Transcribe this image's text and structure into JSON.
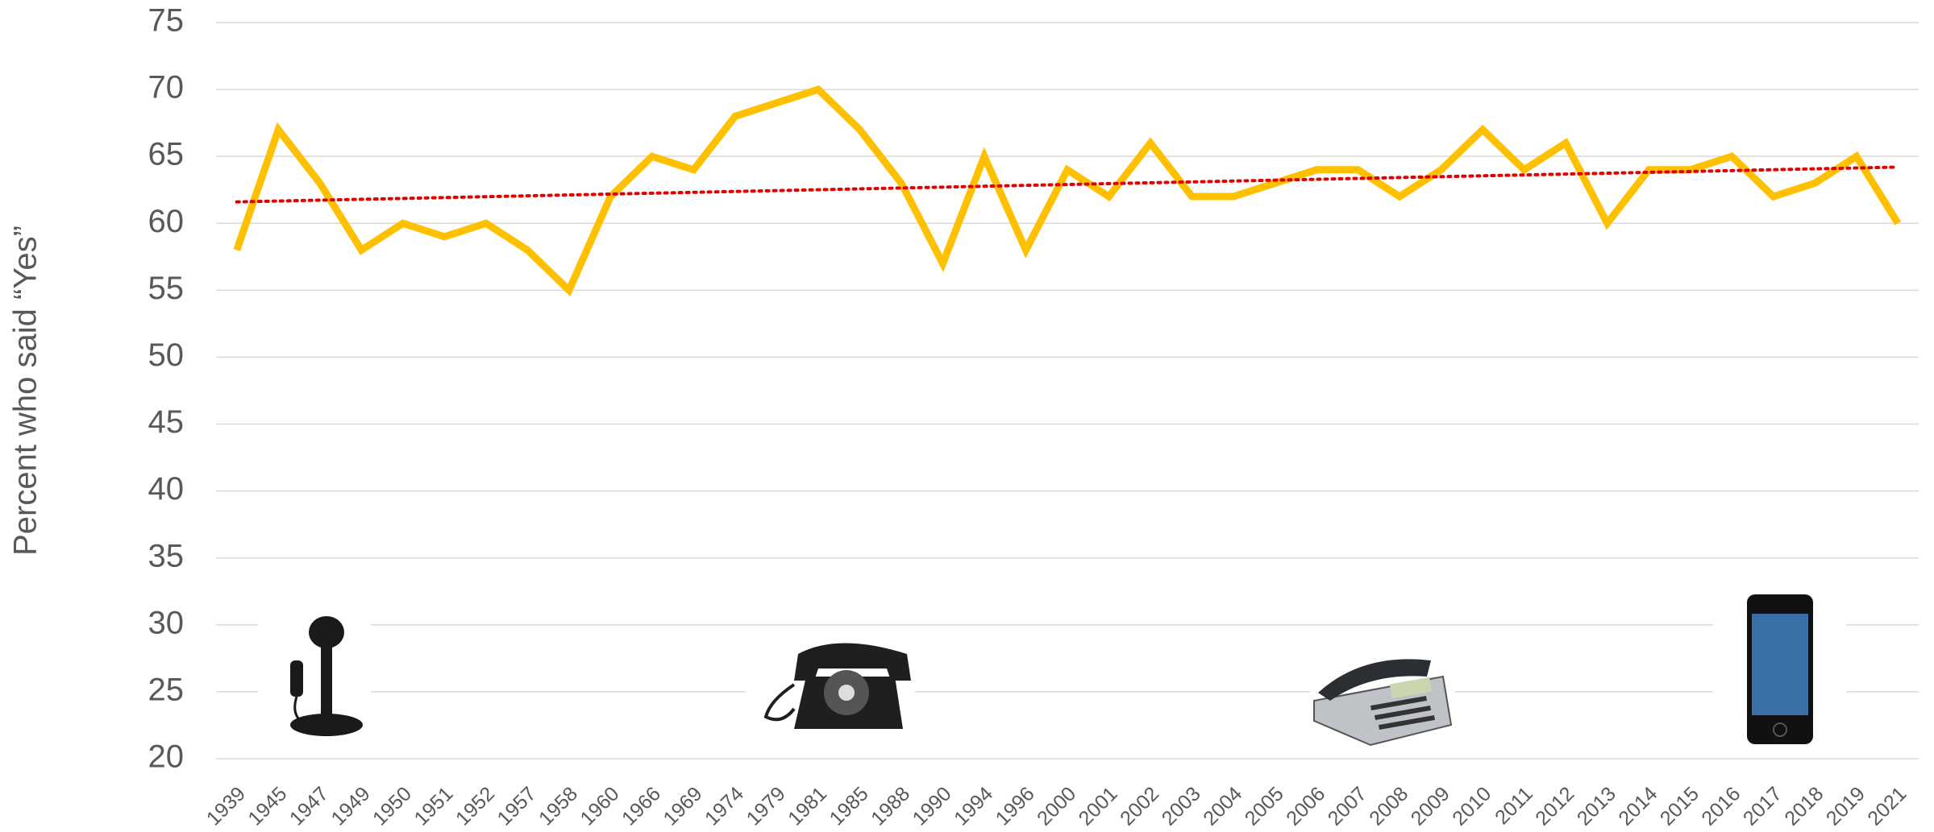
{
  "chart_data": {
    "type": "line",
    "y_axis_label": "Percent who said “Yes”",
    "categories": [
      "1939",
      "1945",
      "1947",
      "1949",
      "1950",
      "1951",
      "1952",
      "1957",
      "1958",
      "1960",
      "1966",
      "1969",
      "1974",
      "1979",
      "1981",
      "1985",
      "1988",
      "1990",
      "1994",
      "1996",
      "2000",
      "2001",
      "2002",
      "2003",
      "2004",
      "2005",
      "2006",
      "2007",
      "2008",
      "2009",
      "2010",
      "2011",
      "2012",
      "2013",
      "2014",
      "2015",
      "2016",
      "2017",
      "2018",
      "2019",
      "2021"
    ],
    "series": [
      {
        "color": "#ffc000",
        "values": [
          58,
          67,
          63,
          58,
          60,
          59,
          60,
          58,
          55,
          62,
          65,
          64,
          68,
          69,
          70,
          67,
          63,
          57,
          65,
          58,
          64,
          62,
          66,
          62,
          62,
          63,
          64,
          64,
          62,
          64,
          67,
          64,
          66,
          60,
          64,
          64,
          65,
          62,
          63,
          65,
          60
        ]
      }
    ],
    "trendline": {
      "color": "#e00000",
      "values": [
        61.6,
        64.2
      ]
    },
    "ylim": [
      20,
      75
    ],
    "yticks": [
      20,
      25,
      30,
      35,
      40,
      45,
      50,
      55,
      60,
      65,
      70,
      75
    ],
    "grid": true
  }
}
